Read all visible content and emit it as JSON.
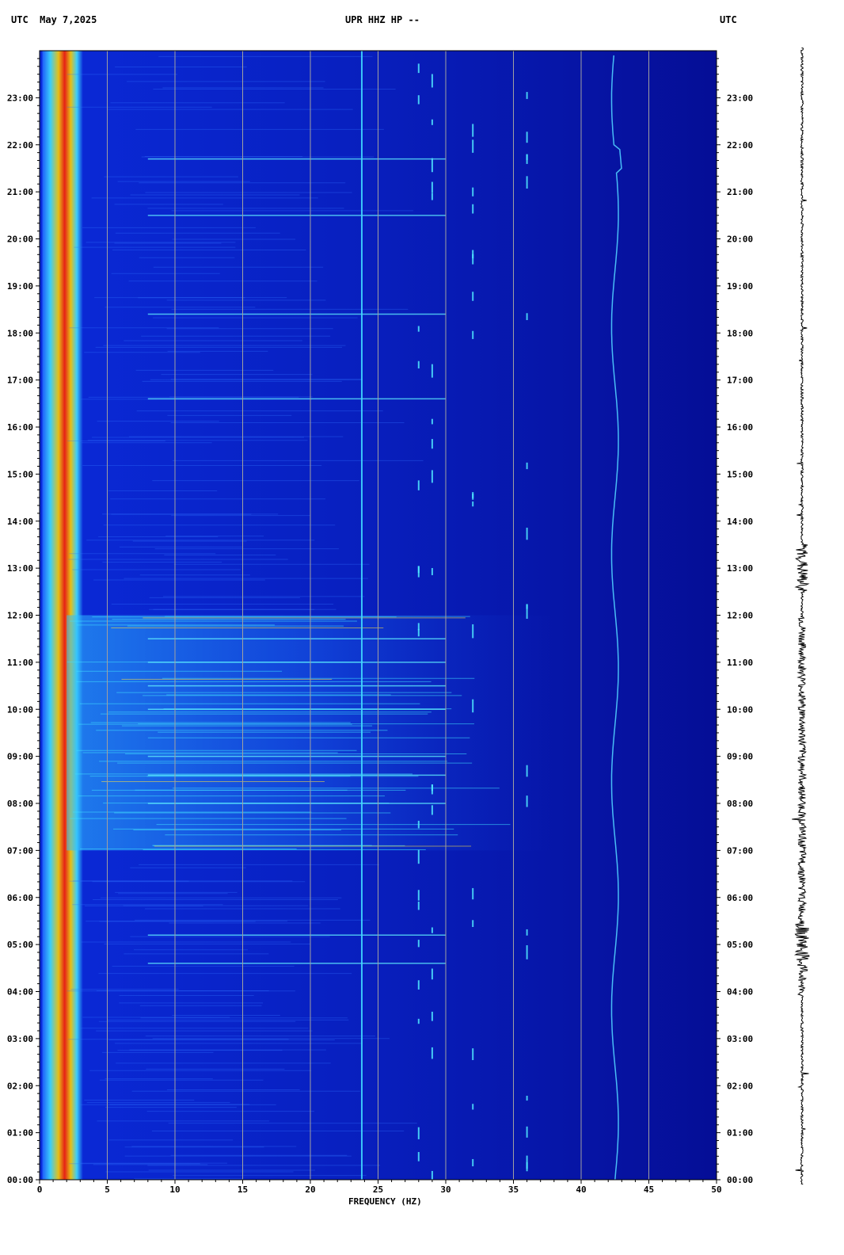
{
  "header": {
    "left": "UTC  May 7,2025",
    "center": "UPR HHZ HP --",
    "right": "UTC"
  },
  "colors": {
    "background": "#000080",
    "low_band": "#0a2ad8",
    "high_band": "#050fa8",
    "grid": "#a0a0a0",
    "hot": "#ff2000",
    "warm": "#ffd000",
    "cyan": "#40e0ff"
  },
  "chart_data": {
    "type": "heatmap",
    "title": "UPR HHZ HP --",
    "xlabel": "FREQUENCY (HZ)",
    "ylabel": "UTC",
    "xlim": [
      0,
      50
    ],
    "ylim": [
      0,
      24
    ],
    "x_ticks": [
      0,
      5,
      10,
      15,
      20,
      25,
      30,
      35,
      40,
      45,
      50
    ],
    "x_tick_labels": [
      "0",
      "5",
      "10",
      "15",
      "20",
      "25",
      "30",
      "35",
      "40",
      "45",
      "50"
    ],
    "y_ticks": [
      0,
      1,
      2,
      3,
      4,
      5,
      6,
      7,
      8,
      9,
      10,
      11,
      12,
      13,
      14,
      15,
      16,
      17,
      18,
      19,
      20,
      21,
      22,
      23
    ],
    "y_tick_labels": [
      "00:00",
      "01:00",
      "02:00",
      "03:00",
      "04:00",
      "05:00",
      "06:00",
      "07:00",
      "08:00",
      "09:00",
      "10:00",
      "11:00",
      "12:00",
      "13:00",
      "14:00",
      "15:00",
      "16:00",
      "17:00",
      "18:00",
      "19:00",
      "20:00",
      "21:00",
      "22:00",
      "23:00"
    ],
    "grid_x": true,
    "features": {
      "strong_low_freq_band_hz": [
        0.5,
        2
      ],
      "persistent_line_hz": 23.8,
      "drifting_line_hz": 42.5,
      "intermittent_lines_hz": [
        28,
        29,
        32,
        36
      ],
      "high_noise_hours": [
        7,
        12
      ],
      "noise_bursts_hours": [
        4.6,
        5.2,
        8.0,
        8.6,
        9.0,
        10.0,
        10.5,
        11.0,
        11.5,
        16.6,
        18.4,
        20.5,
        21.7
      ]
    }
  }
}
